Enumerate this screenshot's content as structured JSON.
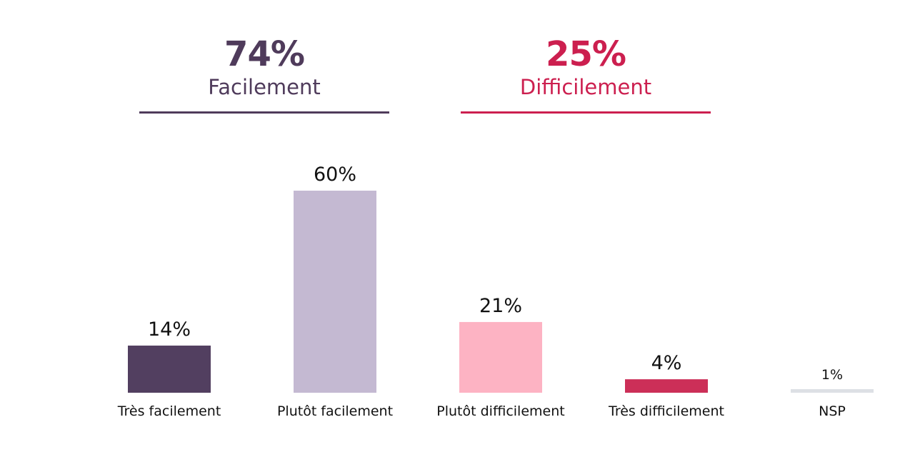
{
  "summary": {
    "easy": {
      "pct": "74%",
      "label": "Facilement",
      "color": "#4f3b5b"
    },
    "hard": {
      "pct": "25%",
      "label": "Difficilement",
      "color": "#cc1f4f"
    }
  },
  "chart_data": {
    "type": "bar",
    "categories": [
      "Très facilement",
      "Plutôt facilement",
      "Plutôt difficilement",
      "Très difficilement",
      "NSP"
    ],
    "values": [
      14,
      60,
      21,
      4,
      1
    ],
    "value_labels": [
      "14%",
      "60%",
      "21%",
      "4%",
      "1%"
    ],
    "colors": [
      "#523f60",
      "#c4b9d2",
      "#fdb3c3",
      "#cc2f58",
      "#dde0e5"
    ],
    "ylim": [
      0,
      60
    ],
    "grid": false,
    "legend": "none"
  }
}
